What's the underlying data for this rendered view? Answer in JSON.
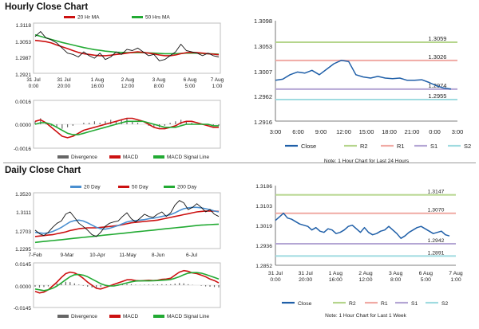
{
  "sections": {
    "hourly_title": "Hourly Close Chart",
    "daily_title": "Daily Close Chart"
  },
  "chart_data": [
    {
      "id": "hourly_price",
      "type": "line",
      "title": "Hourly Close Chart",
      "legend": [
        "20 Hr MA",
        "50 Hrs MA"
      ],
      "y_ticks": [
        "1.3118",
        "1.3053",
        "1.2987",
        "1.2921"
      ],
      "ylim": [
        1.2921,
        1.3118
      ],
      "x_ticks": [
        [
          "31 Jul",
          "0:00"
        ],
        [
          "31 Jul",
          "20:00"
        ],
        [
          "1 Aug",
          "16:00"
        ],
        [
          "2 Aug",
          "12:00"
        ],
        [
          "3 Aug",
          "8:00"
        ],
        [
          "6 Aug",
          "5:00"
        ],
        [
          "7 Aug",
          "1:00"
        ]
      ],
      "series": [
        {
          "name": "Close",
          "color": "#111111",
          "values": [
            1.3065,
            1.3085,
            1.306,
            1.3052,
            1.304,
            1.302,
            1.3,
            1.2995,
            1.2985,
            1.3005,
            1.299,
            1.298,
            1.3,
            1.2975,
            1.2985,
            1.3005,
            1.2995,
            1.3015,
            1.301,
            1.302,
            1.3005,
            1.299,
            1.2995,
            1.297,
            1.2975,
            1.299,
            1.3005,
            1.3035,
            1.301,
            1.3005,
            1.3,
            1.299,
            1.3,
            1.299,
            1.2985
          ]
        },
        {
          "name": "20 Hr MA",
          "color": "#cc1111",
          "values": [
            1.305,
            1.3048,
            1.3045,
            1.304,
            1.3032,
            1.3025,
            1.3018,
            1.301,
            1.3003,
            1.2998,
            1.2995,
            1.2992,
            1.299,
            1.299,
            1.2992,
            1.2995,
            1.2997,
            1.3,
            1.3003,
            1.3005,
            1.3003,
            1.3,
            1.2997,
            1.2993,
            1.299,
            1.299,
            1.2993,
            1.2998,
            1.3002,
            1.3003,
            1.3002,
            1.3,
            1.2998,
            1.2996,
            1.2994
          ]
        },
        {
          "name": "50 Hrs MA",
          "color": "#22aa33",
          "values": [
            1.3072,
            1.3066,
            1.306,
            1.3054,
            1.3048,
            1.3042,
            1.3037,
            1.3032,
            1.3027,
            1.3022,
            1.3018,
            1.3014,
            1.3011,
            1.3008,
            1.3006,
            1.3004,
            1.3003,
            1.3002,
            1.3002,
            1.3002,
            1.3002,
            1.3001,
            1.3,
            1.2999,
            1.2998,
            1.2998,
            1.2998,
            1.2999,
            1.3,
            1.3,
            1.3,
            1.2999,
            1.2998,
            1.2997,
            1.2996
          ]
        }
      ]
    },
    {
      "id": "hourly_macd",
      "type": "line",
      "legend": [
        "Divergence",
        "MACD",
        "MACD Signal Line"
      ],
      "y_ticks": [
        "0.0016",
        "0.0000",
        "-0.0016"
      ],
      "ylim": [
        -0.0016,
        0.0016
      ],
      "series": [
        {
          "name": "Divergence",
          "color": "#666666",
          "values": [
            0.0002,
            0.0004,
            0.0001,
            -0.0001,
            -0.0002,
            -0.0003,
            -0.0002,
            -0.0001,
            0.0,
            0.0001,
            0.0001,
            0.0002,
            0.0001,
            0.0002,
            0.0003,
            0.0002,
            0.0003,
            0.0004,
            0.0002,
            0.0001,
            0.0,
            -0.0001,
            -0.0002,
            -0.0002,
            -0.0001,
            0.0001,
            0.0002,
            0.0003,
            0.0002,
            0.0001,
            0.0,
            0.0,
            -0.0001,
            -0.0001,
            -0.0001
          ]
        },
        {
          "name": "MACD",
          "color": "#cc1111",
          "values": [
            0.0002,
            0.0003,
            0.0001,
            -0.0002,
            -0.0005,
            -0.0008,
            -0.0009,
            -0.0008,
            -0.0006,
            -0.0004,
            -0.0003,
            -0.0002,
            -0.0001,
            0.0,
            0.0001,
            0.0002,
            0.0003,
            0.0004,
            0.0004,
            0.0003,
            0.0002,
            0.0,
            -0.0002,
            -0.0003,
            -0.0003,
            -0.0002,
            -0.0001,
            0.0001,
            0.0002,
            0.0002,
            0.0001,
            0.0,
            -0.0001,
            -0.0002,
            -0.0002
          ]
        },
        {
          "name": "MACD Signal Line",
          "color": "#22aa33",
          "values": [
            0.0,
            0.0001,
            0.0001,
            0.0,
            -0.0002,
            -0.0004,
            -0.0006,
            -0.0007,
            -0.0007,
            -0.0006,
            -0.0005,
            -0.0004,
            -0.0003,
            -0.0002,
            -0.0001,
            0.0,
            0.0001,
            0.0002,
            0.0002,
            0.0002,
            0.0002,
            0.0001,
            0.0,
            -0.0001,
            -0.0002,
            -0.0002,
            -0.0002,
            -0.0001,
            0.0,
            0.0,
            0.0,
            0.0,
            0.0,
            -0.0001,
            -0.0001
          ]
        }
      ]
    },
    {
      "id": "last24_hours",
      "type": "line",
      "note": "Note: 1 Hour Chart for Last 24 Hours",
      "y_ticks": [
        "1.3098",
        "1.3053",
        "1.3007",
        "1.2962",
        "1.2916"
      ],
      "ylim": [
        1.2916,
        1.3098
      ],
      "x_ticks": [
        "3:00",
        "6:00",
        "9:00",
        "12:00",
        "15:00",
        "18:00",
        "21:00",
        "0:00",
        "3:00"
      ],
      "levels": [
        {
          "name": "R2",
          "value": 1.3059,
          "label": "1.3059",
          "color": "#b5d58c"
        },
        {
          "name": "R1",
          "value": 1.3026,
          "label": "1.3026",
          "color": "#f0aaa4"
        },
        {
          "name": "S1",
          "value": 1.2974,
          "label": "1.2974",
          "color": "#b4a6d4"
        },
        {
          "name": "S2",
          "value": 1.2955,
          "label": "1.2955",
          "color": "#9fdbe0"
        }
      ],
      "legend": [
        {
          "name": "Close",
          "color": "#1f5fa8"
        },
        {
          "name": "R2",
          "color": "#b5d58c"
        },
        {
          "name": "R1",
          "color": "#f0aaa4"
        },
        {
          "name": "S1",
          "color": "#b4a6d4"
        },
        {
          "name": "S2",
          "color": "#9fdbe0"
        }
      ],
      "series": [
        {
          "name": "Close",
          "color": "#1f5fa8",
          "values": [
            1.299,
            1.2992,
            1.3,
            1.3005,
            1.3003,
            1.3008,
            1.3,
            1.301,
            1.302,
            1.3026,
            1.3024,
            1.3,
            1.2996,
            1.2994,
            1.2997,
            1.2994,
            1.2993,
            1.2994,
            1.299,
            1.299,
            1.2991,
            1.2986,
            1.298,
            1.2976,
            1.2974
          ]
        }
      ]
    },
    {
      "id": "daily_price",
      "type": "line",
      "title": "Daily Close Chart",
      "legend": [
        "20 Day",
        "50 Day",
        "200 Day"
      ],
      "y_ticks": [
        "1.3520",
        "1.3111",
        "1.2703",
        "1.2295"
      ],
      "ylim": [
        1.2295,
        1.352
      ],
      "x_ticks": [
        "7-Feb",
        "9-Mar",
        "10-Apr",
        "11-May",
        "8-Jun",
        "6-Jul"
      ],
      "series": [
        {
          "name": "Close",
          "color": "#111111",
          "values": [
            1.27,
            1.262,
            1.258,
            1.265,
            1.276,
            1.285,
            1.29,
            1.305,
            1.31,
            1.298,
            1.285,
            1.278,
            1.27,
            1.26,
            1.256,
            1.265,
            1.278,
            1.285,
            1.288,
            1.29,
            1.3,
            1.308,
            1.295,
            1.288,
            1.296,
            1.305,
            1.3,
            1.298,
            1.305,
            1.31,
            1.3,
            1.308,
            1.325,
            1.335,
            1.33,
            1.315,
            1.32,
            1.328,
            1.32,
            1.31,
            1.315,
            1.305,
            1.3
          ]
        },
        {
          "name": "20 Day",
          "color": "#4a8fd0",
          "values": [
            1.265,
            1.264,
            1.263,
            1.264,
            1.267,
            1.271,
            1.276,
            1.282,
            1.288,
            1.291,
            1.292,
            1.29,
            1.286,
            1.281,
            1.276,
            1.273,
            1.272,
            1.274,
            1.277,
            1.28,
            1.284,
            1.288,
            1.29,
            1.291,
            1.292,
            1.293,
            1.295,
            1.296,
            1.298,
            1.3,
            1.302,
            1.304,
            1.308,
            1.313,
            1.317,
            1.319,
            1.32,
            1.32,
            1.319,
            1.317,
            1.315,
            1.312,
            1.31
          ]
        },
        {
          "name": "50 Day",
          "color": "#cc1111",
          "values": [
            1.256,
            1.257,
            1.258,
            1.259,
            1.26,
            1.262,
            1.264,
            1.266,
            1.269,
            1.271,
            1.273,
            1.274,
            1.275,
            1.275,
            1.275,
            1.276,
            1.277,
            1.278,
            1.279,
            1.28,
            1.282,
            1.284,
            1.286,
            1.287,
            1.288,
            1.289,
            1.29,
            1.291,
            1.292,
            1.294,
            1.296,
            1.298,
            1.3,
            1.302,
            1.304,
            1.306,
            1.308,
            1.31,
            1.311,
            1.312,
            1.312,
            1.312,
            1.311
          ]
        },
        {
          "name": "200 Day",
          "color": "#22aa33",
          "values": [
            1.243,
            1.244,
            1.245,
            1.246,
            1.247,
            1.248,
            1.249,
            1.25,
            1.251,
            1.252,
            1.253,
            1.254,
            1.255,
            1.256,
            1.257,
            1.258,
            1.259,
            1.26,
            1.261,
            1.262,
            1.263,
            1.264,
            1.265,
            1.266,
            1.267,
            1.268,
            1.269,
            1.27,
            1.271,
            1.272,
            1.273,
            1.274,
            1.275,
            1.276,
            1.277,
            1.278,
            1.279,
            1.28,
            1.281,
            1.2815,
            1.282,
            1.2825,
            1.283
          ]
        }
      ]
    },
    {
      "id": "daily_macd",
      "type": "line",
      "legend": [
        "Divergence",
        "MACD",
        "MACD Signal Line"
      ],
      "y_ticks": [
        "0.0145",
        "0.0000",
        "-0.0145"
      ],
      "ylim": [
        -0.0145,
        0.0145
      ],
      "series": [
        {
          "name": "Divergence",
          "color": "#666666",
          "values": [
            -0.001,
            -0.0015,
            -0.0012,
            -0.0008,
            0.0,
            0.001,
            0.0018,
            0.0022,
            0.002,
            0.0012,
            0.0004,
            -0.0004,
            -0.001,
            -0.0015,
            -0.0016,
            -0.0012,
            -0.0006,
            0.0,
            0.0004,
            0.0006,
            0.0008,
            0.0008,
            0.0006,
            0.0003,
            0.0002,
            0.0003,
            0.0004,
            0.0004,
            0.0005,
            0.0006,
            0.0005,
            0.0006,
            0.001,
            0.0014,
            0.0012,
            0.0006,
            0.0002,
            0.0,
            -0.0004,
            -0.0008,
            -0.001,
            -0.0012,
            -0.0014
          ]
        },
        {
          "name": "MACD",
          "color": "#cc1111",
          "values": [
            -0.004,
            -0.005,
            -0.0045,
            -0.003,
            -0.0005,
            0.002,
            0.005,
            0.0075,
            0.0085,
            0.008,
            0.0065,
            0.0045,
            0.002,
            0.0,
            -0.002,
            -0.0025,
            -0.0015,
            -0.0005,
            0.0005,
            0.0015,
            0.0025,
            0.0035,
            0.0035,
            0.003,
            0.0028,
            0.003,
            0.0032,
            0.003,
            0.0032,
            0.0038,
            0.004,
            0.0045,
            0.0065,
            0.0085,
            0.0095,
            0.009,
            0.008,
            0.0075,
            0.0065,
            0.0055,
            0.004,
            0.003,
            0.0015
          ]
        },
        {
          "name": "MACD Signal Line",
          "color": "#22aa33",
          "values": [
            -0.0025,
            -0.003,
            -0.0035,
            -0.003,
            -0.002,
            -0.0005,
            0.0015,
            0.0035,
            0.0055,
            0.0068,
            0.007,
            0.0065,
            0.0055,
            0.004,
            0.0025,
            0.001,
            0.0,
            -0.0005,
            -0.0005,
            0.0,
            0.0008,
            0.0015,
            0.0022,
            0.0027,
            0.0028,
            0.0028,
            0.0028,
            0.0029,
            0.003,
            0.0032,
            0.0034,
            0.0037,
            0.0045,
            0.0055,
            0.0068,
            0.0078,
            0.0082,
            0.0082,
            0.0078,
            0.007,
            0.006,
            0.005,
            0.004
          ]
        }
      ]
    },
    {
      "id": "last_week",
      "type": "line",
      "note": "Note: 1 Hour Chart for Last 1 Week",
      "y_ticks": [
        "1.3186",
        "1.3103",
        "1.3019",
        "1.2936",
        "1.2852"
      ],
      "ylim": [
        1.2852,
        1.3186
      ],
      "x_ticks": [
        [
          "31 Jul",
          "0:00"
        ],
        [
          "31 Jul",
          "20:00"
        ],
        [
          "1 Aug",
          "16:00"
        ],
        [
          "2 Aug",
          "12:00"
        ],
        [
          "3 Aug",
          "8:00"
        ],
        [
          "6 Aug",
          "5:00"
        ],
        [
          "7 Aug",
          "1:00"
        ]
      ],
      "levels": [
        {
          "name": "R2",
          "value": 1.3147,
          "label": "1.3147",
          "color": "#b5d58c"
        },
        {
          "name": "R1",
          "value": 1.307,
          "label": "1.3070",
          "color": "#f0aaa4"
        },
        {
          "name": "S1",
          "value": 1.2942,
          "label": "1.2942",
          "color": "#b4a6d4"
        },
        {
          "name": "S2",
          "value": 1.2891,
          "label": "1.2891",
          "color": "#9fdbe0"
        }
      ],
      "legend": [
        {
          "name": "Close",
          "color": "#1f5fa8"
        },
        {
          "name": "R2",
          "color": "#b5d58c"
        },
        {
          "name": "R1",
          "color": "#f0aaa4"
        },
        {
          "name": "S1",
          "color": "#b4a6d4"
        },
        {
          "name": "S2",
          "color": "#9fdbe0"
        }
      ],
      "series": [
        {
          "name": "Close",
          "color": "#1f5fa8",
          "values": [
            1.304,
            1.3055,
            1.307,
            1.305,
            1.3045,
            1.3035,
            1.3025,
            1.302,
            1.3015,
            1.3,
            1.301,
            1.2995,
            1.299,
            1.3005,
            1.3,
            1.2985,
            1.299,
            1.3,
            1.3015,
            1.302,
            1.3005,
            1.299,
            1.301,
            1.299,
            1.298,
            1.2985,
            1.2995,
            1.3,
            1.3015,
            1.3,
            1.2985,
            1.2965,
            1.2975,
            1.299,
            1.3,
            1.301,
            1.3015,
            1.3005,
            1.2995,
            1.2985,
            1.299,
            1.2995,
            1.298,
            1.2975
          ]
        }
      ]
    }
  ]
}
